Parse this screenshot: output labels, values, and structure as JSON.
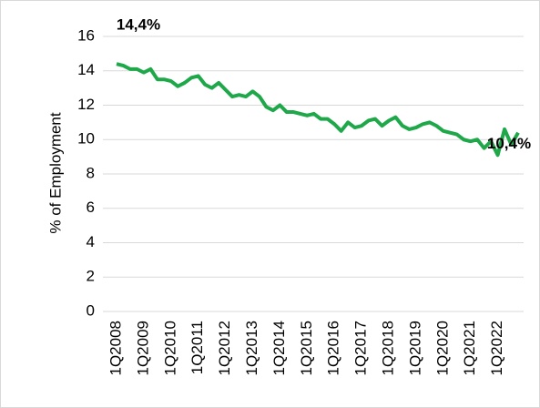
{
  "chart_data": {
    "type": "line",
    "y_label": "% of Employment",
    "categories": [
      "1Q2008",
      null,
      null,
      null,
      "1Q2009",
      null,
      null,
      null,
      "1Q2010",
      null,
      null,
      null,
      "1Q2011",
      null,
      null,
      null,
      "1Q2012",
      null,
      null,
      null,
      "1Q2013",
      null,
      null,
      null,
      "1Q2014",
      null,
      null,
      null,
      "1Q2015",
      null,
      null,
      null,
      "1Q2016",
      null,
      null,
      null,
      "1Q2017",
      null,
      null,
      null,
      "1Q2018",
      null,
      null,
      null,
      "1Q2019",
      null,
      null,
      null,
      "1Q2020",
      null,
      null,
      null,
      "1Q2021",
      null,
      null,
      null,
      "1Q2022",
      null,
      null,
      null
    ],
    "series": [
      {
        "color": "#1fa84a",
        "values": [
          14.4,
          14.3,
          14.1,
          14.1,
          13.9,
          14.1,
          13.5,
          13.5,
          13.4,
          13.1,
          13.3,
          13.6,
          13.7,
          13.2,
          13.0,
          13.3,
          12.9,
          12.5,
          12.6,
          12.5,
          12.8,
          12.5,
          11.9,
          11.7,
          12.0,
          11.6,
          11.6,
          11.5,
          11.4,
          11.5,
          11.2,
          11.2,
          10.9,
          10.5,
          11.0,
          10.7,
          10.8,
          11.1,
          11.2,
          10.8,
          11.1,
          11.3,
          10.8,
          10.6,
          10.7,
          10.9,
          11.0,
          10.8,
          10.5,
          10.4,
          10.3,
          10.0,
          9.9,
          10.0,
          9.5,
          9.9,
          9.1,
          10.6,
          9.7,
          10.4
        ],
        "value_labels": [
          "14,4%",
          null,
          null,
          null,
          null,
          null,
          null,
          null,
          null,
          null,
          null,
          null,
          null,
          null,
          null,
          null,
          null,
          null,
          null,
          null,
          null,
          null,
          null,
          null,
          null,
          null,
          null,
          null,
          null,
          null,
          null,
          null,
          null,
          null,
          null,
          null,
          null,
          null,
          null,
          null,
          null,
          null,
          null,
          null,
          null,
          null,
          null,
          null,
          null,
          null,
          null,
          null,
          null,
          null,
          null,
          null,
          null,
          null,
          null,
          "10,4%"
        ]
      }
    ],
    "ylim": [
      0,
      16
    ],
    "yticks": [
      0,
      2,
      4,
      6,
      8,
      10,
      12,
      14,
      16
    ],
    "grid": true
  }
}
